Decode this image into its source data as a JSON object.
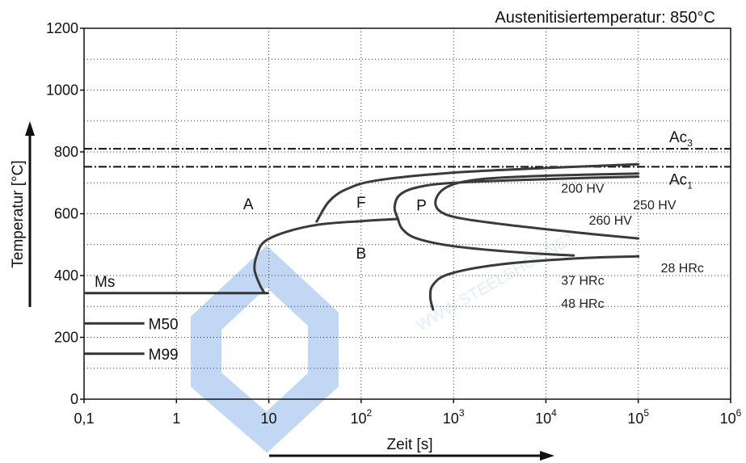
{
  "chart_data": {
    "type": "line",
    "title": "Austenitisiertemperatur: 850°C",
    "xlabel": "Zeit [s]",
    "ylabel": "Temperatur [°C]",
    "x_scale": "log",
    "xlim": [
      0.1,
      1000000
    ],
    "ylim": [
      0,
      1200
    ],
    "grid": true,
    "x_ticks": [
      {
        "value": 0.1,
        "base": "0,1",
        "exp": ""
      },
      {
        "value": 1,
        "base": "1",
        "exp": ""
      },
      {
        "value": 10,
        "base": "10",
        "exp": ""
      },
      {
        "value": 100,
        "base": "10",
        "exp": "2"
      },
      {
        "value": 1000,
        "base": "10",
        "exp": "3"
      },
      {
        "value": 10000,
        "base": "10",
        "exp": "4"
      },
      {
        "value": 100000,
        "base": "10",
        "exp": "5"
      },
      {
        "value": 1000000,
        "base": "10",
        "exp": "6"
      }
    ],
    "y_ticks": [
      0,
      200,
      400,
      600,
      800,
      1000,
      1200
    ],
    "reference_lines": [
      {
        "name": "Ac3",
        "y": 810,
        "label_base": "Ac",
        "label_sub": "3"
      },
      {
        "name": "Ac1",
        "y": 752,
        "label_base": "Ac",
        "label_sub": "1"
      }
    ],
    "ms_lines": [
      {
        "name": "Ms",
        "y": 343,
        "x_end": 10
      },
      {
        "name": "M50",
        "y": 245,
        "x_end": 0.45
      },
      {
        "name": "M99",
        "y": 147,
        "x_end": 0.45
      }
    ],
    "curves": [
      {
        "name": "ferrite-start",
        "points": [
          [
            33,
            575
          ],
          [
            45,
            640
          ],
          [
            70,
            680
          ],
          [
            150,
            708
          ],
          [
            1000,
            733
          ],
          [
            10000,
            748
          ],
          [
            100000,
            760
          ]
        ]
      },
      {
        "name": "bainite-start",
        "points": [
          [
            9,
            343
          ],
          [
            8,
            370
          ],
          [
            7,
            420
          ],
          [
            7.5,
            470
          ],
          [
            9,
            510
          ],
          [
            15,
            540
          ],
          [
            35,
            565
          ],
          [
            100,
            576
          ],
          [
            250,
            583
          ]
        ]
      },
      {
        "name": "pearlite-start",
        "points": [
          [
            250,
            583
          ],
          [
            230,
            620
          ],
          [
            260,
            660
          ],
          [
            400,
            685
          ],
          [
            1000,
            700
          ],
          [
            10000,
            712
          ],
          [
            100000,
            720
          ]
        ]
      },
      {
        "name": "pearlite-finish",
        "points": [
          [
            100000,
            730
          ],
          [
            10000,
            723
          ],
          [
            2000,
            712
          ],
          [
            900,
            690
          ],
          [
            650,
            650
          ],
          [
            700,
            610
          ],
          [
            1200,
            585
          ],
          [
            5000,
            560
          ],
          [
            30000,
            535
          ],
          [
            100000,
            520
          ]
        ]
      },
      {
        "name": "bainite-finish",
        "points": [
          [
            250,
            583
          ],
          [
            280,
            550
          ],
          [
            400,
            520
          ],
          [
            1000,
            495
          ],
          [
            5000,
            475
          ],
          [
            20000,
            465
          ]
        ]
      },
      {
        "name": "bainite-lower",
        "points": [
          [
            600,
            290
          ],
          [
            560,
            330
          ],
          [
            600,
            370
          ],
          [
            900,
            405
          ],
          [
            3000,
            435
          ],
          [
            20000,
            455
          ],
          [
            100000,
            462
          ]
        ]
      }
    ],
    "regions": [
      {
        "label": "A",
        "x": 6,
        "y": 615
      },
      {
        "label": "F",
        "x": 100,
        "y": 620
      },
      {
        "label": "P",
        "x": 450,
        "y": 610
      },
      {
        "label": "B",
        "x": 100,
        "y": 455
      }
    ],
    "hardness": [
      {
        "label": "200 HV",
        "x": 25000,
        "y": 668
      },
      {
        "label": "250 HV",
        "x": 150000,
        "y": 615
      },
      {
        "label": "260 HV",
        "x": 50000,
        "y": 565
      },
      {
        "label": "28 HRc",
        "x": 300000,
        "y": 410
      },
      {
        "label": "37 HRc",
        "x": 25000,
        "y": 370
      },
      {
        "label": "48 HRc",
        "x": 25000,
        "y": 295
      }
    ]
  }
}
